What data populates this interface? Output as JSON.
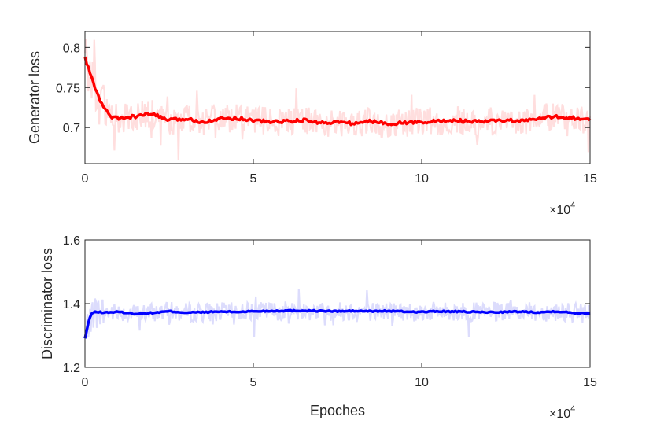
{
  "chart_data": [
    {
      "type": "line",
      "title": "",
      "xlabel": "",
      "ylabel": "Generator loss",
      "x_exponent_label": {
        "base": "×10",
        "exp": "4"
      },
      "xlim": [
        0,
        15
      ],
      "ylim": [
        0.655,
        0.82
      ],
      "xticks": [
        0,
        5,
        10,
        15
      ],
      "xtick_labels": [
        "0",
        "5",
        "10",
        "15"
      ],
      "yticks": [
        0.7,
        0.75,
        0.8
      ],
      "ytick_labels": [
        "0.7",
        "0.75",
        "0.8"
      ],
      "grid": false,
      "series": [
        {
          "role": "smoothed",
          "color": "#ff0000",
          "x": [
            0,
            0.2,
            0.4,
            0.6,
            0.8,
            1.0,
            1.5,
            2.0,
            2.5,
            3.0,
            3.5,
            4.0,
            4.5,
            5.0,
            5.5,
            6.0,
            6.5,
            7.0,
            7.5,
            8.0,
            8.5,
            9.0,
            9.5,
            10.0,
            10.5,
            11.0,
            11.5,
            12.0,
            12.5,
            13.0,
            13.5,
            14.0,
            14.5,
            15.0
          ],
          "y": [
            0.787,
            0.762,
            0.738,
            0.722,
            0.713,
            0.711,
            0.714,
            0.717,
            0.709,
            0.711,
            0.707,
            0.711,
            0.712,
            0.709,
            0.707,
            0.708,
            0.709,
            0.706,
            0.707,
            0.705,
            0.708,
            0.705,
            0.706,
            0.707,
            0.708,
            0.709,
            0.707,
            0.708,
            0.709,
            0.708,
            0.711,
            0.714,
            0.712,
            0.709
          ]
        }
      ],
      "raw_series": {
        "color": "#ffdede",
        "mean_offset": 0,
        "amplitude": 0.018
      }
    },
    {
      "type": "line",
      "title": "",
      "xlabel": "Epoches",
      "ylabel": "Discriminator loss",
      "x_exponent_label": {
        "base": "×10",
        "exp": "4"
      },
      "xlim": [
        0,
        15
      ],
      "ylim": [
        1.2,
        1.6
      ],
      "xticks": [
        0,
        5,
        10,
        15
      ],
      "xtick_labels": [
        "0",
        "5",
        "10",
        "15"
      ],
      "yticks": [
        1.2,
        1.4,
        1.6
      ],
      "ytick_labels": [
        "1.2",
        "1.4",
        "1.6"
      ],
      "grid": false,
      "series": [
        {
          "role": "smoothed",
          "color": "#0000ff",
          "x": [
            0,
            0.1,
            0.2,
            0.35,
            0.5,
            1.0,
            1.5,
            2.0,
            2.5,
            3.0,
            3.5,
            4.0,
            4.5,
            5.0,
            5.5,
            6.0,
            6.5,
            7.0,
            7.5,
            8.0,
            8.5,
            9.0,
            9.5,
            10.0,
            10.5,
            11.0,
            11.5,
            12.0,
            12.5,
            13.0,
            13.5,
            14.0,
            14.5,
            15.0
          ],
          "y": [
            1.29,
            1.34,
            1.37,
            1.375,
            1.372,
            1.374,
            1.368,
            1.371,
            1.376,
            1.372,
            1.373,
            1.375,
            1.374,
            1.376,
            1.377,
            1.378,
            1.378,
            1.377,
            1.376,
            1.377,
            1.376,
            1.377,
            1.375,
            1.374,
            1.376,
            1.375,
            1.374,
            1.373,
            1.374,
            1.375,
            1.373,
            1.376,
            1.371,
            1.37
          ]
        }
      ],
      "raw_series": {
        "color": "#dcdcfc",
        "mean_offset": 0,
        "amplitude": 0.03
      }
    }
  ]
}
